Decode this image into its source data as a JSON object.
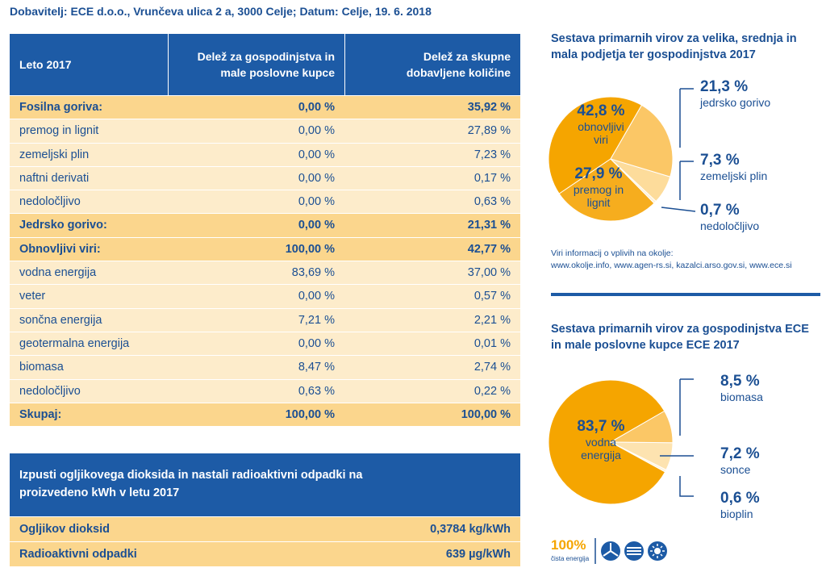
{
  "header": {
    "text": "Dobavitelj: ECE d.o.o., Vrunčeva ulica 2 a, 3000 Celje; Datum: Celje, 19. 6. 2018"
  },
  "table": {
    "columns": [
      "Leto 2017",
      "Delež za gospodinjstva in male poslovne kupce",
      "Delež za skupne dobavljene količine"
    ],
    "rows": [
      [
        "Fosilna goriva:",
        "0,00 %",
        "35,92 %"
      ],
      [
        "premog in lignit",
        "0,00 %",
        "27,89 %"
      ],
      [
        "zemeljski plin",
        "0,00 %",
        "7,23 %"
      ],
      [
        "naftni derivati",
        "0,00 %",
        "0,17 %"
      ],
      [
        "nedoločljivo",
        "0,00 %",
        "0,63 %"
      ],
      [
        "Jedrsko gorivo:",
        "0,00 %",
        "21,31 %"
      ],
      [
        "Obnovljivi viri:",
        "100,00 %",
        "42,77 %"
      ],
      [
        "vodna energija",
        "83,69 %",
        "37,00 %"
      ],
      [
        "veter",
        "0,00 %",
        "0,57 %"
      ],
      [
        "sončna energija",
        "7,21 %",
        "2,21 %"
      ],
      [
        "geotermalna energija",
        "0,00 %",
        "0,01 %"
      ],
      [
        "biomasa",
        "8,47 %",
        "2,74 %"
      ],
      [
        "nedoločljivo",
        "0,63 %",
        "0,22 %"
      ],
      [
        "Skupaj:",
        "100,00 %",
        "100,00 %"
      ]
    ],
    "bold_rows": [
      0,
      5,
      6,
      13
    ]
  },
  "emissions": {
    "title": "Izpusti ogljikovega dioksida in nastali radioaktivni odpadki na proizvedeno kWh v letu 2017",
    "rows": [
      [
        "Ogljikov dioksid",
        "0,3784 kg/kWh"
      ],
      [
        "Radioaktivni odpadki",
        "639 µg/kWh"
      ]
    ]
  },
  "chart_data": [
    {
      "type": "pie",
      "title": "Sestava primarnih virov za velika, srednja in mala podjetja ter gospodinjstva 2017",
      "categories": [
        "jedrsko gorivo",
        "zemeljski plin",
        "nedoločljivo",
        "premog in lignit",
        "obnovljivi viri"
      ],
      "values": [
        21.3,
        7.3,
        0.7,
        27.9,
        42.8
      ],
      "value_labels": [
        "21,3 %",
        "7,3 %",
        "0,7 %",
        "27,9 %",
        "42,8 %"
      ],
      "colors": [
        "#fbc766",
        "#fddc9b",
        "#fef1d6",
        "#f6ad1e",
        "#f5a500"
      ]
    },
    {
      "type": "pie",
      "title": "Sestava primarnih virov za gospodinjstva ECE in male poslovne kupce ECE 2017",
      "categories": [
        "biomasa",
        "sonce",
        "bioplin",
        "vodna energija"
      ],
      "values": [
        8.5,
        7.2,
        0.6,
        83.7
      ],
      "value_labels": [
        "8,5 %",
        "7,2 %",
        "0,6 %",
        "83,7 %"
      ],
      "colors": [
        "#fbc766",
        "#fde3b0",
        "#fff4dc",
        "#f5a500"
      ]
    }
  ],
  "sources": {
    "label": "Viri informacij o vplivih na okolje:",
    "links": "www.okolje.info, www.agen-rs.si, kazalci.arso.gov.si, www.ece.si"
  },
  "logo": {
    "text": "100%",
    "subtitle": "čista energija"
  }
}
